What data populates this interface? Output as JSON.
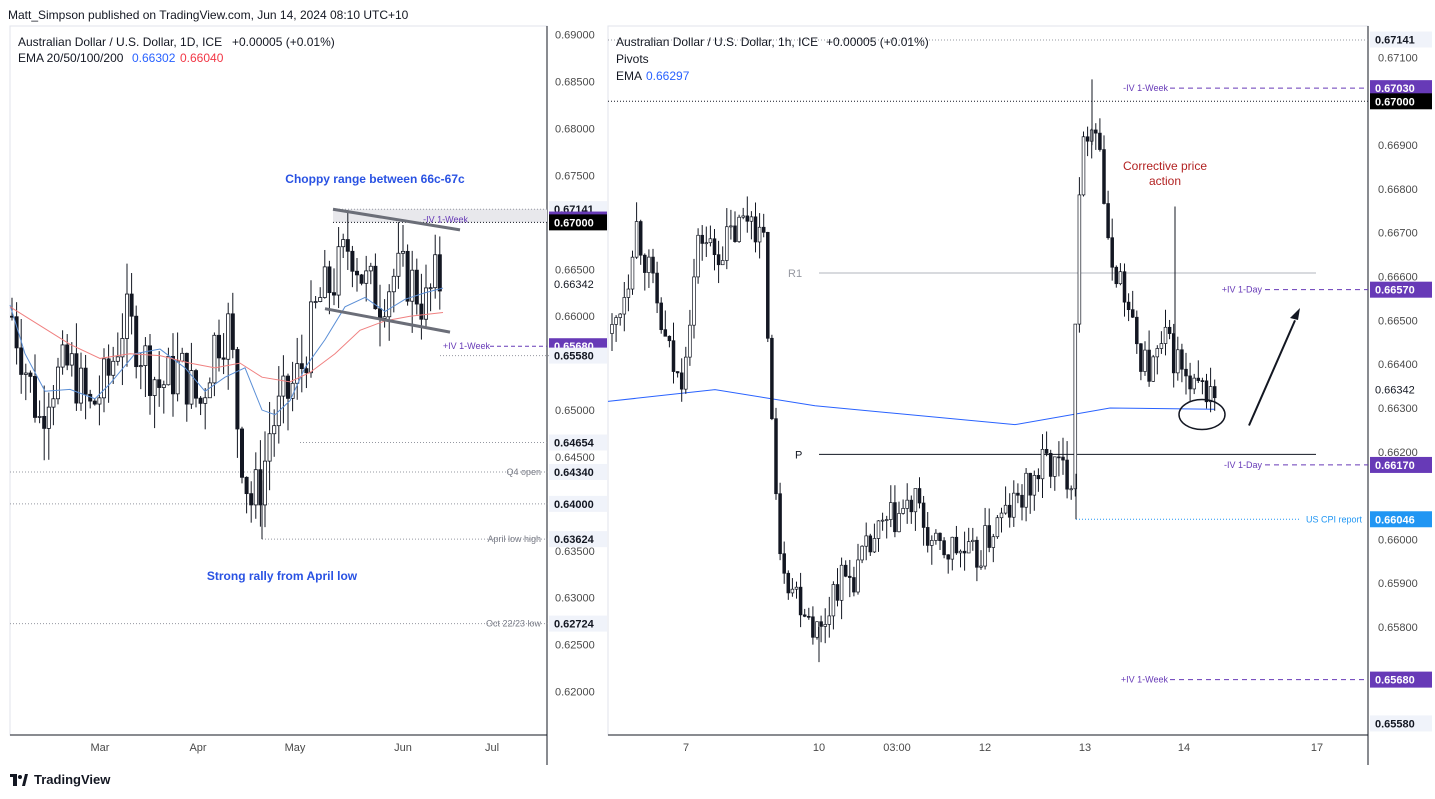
{
  "header": {
    "publisher": "Matt_Simpson published on TradingView.com, Jun 14, 2024 08:10 UTC+10"
  },
  "footer": {
    "brand": "TradingView"
  },
  "colors": {
    "ema_fast": "#2962ff",
    "ema_slow": "#f23645",
    "label_purple": "#673ab7",
    "label_black": "#000000",
    "label_grey": "#787b86",
    "label_blue": "#2196f3",
    "up": "#ffffff",
    "down": "#131722"
  },
  "chart_data": [
    {
      "type": "candlestick",
      "timeframe": "1D",
      "title": "Australian Dollar / U.S. Dollar, 1D, ICE",
      "change": "+0.00005 (+0.01%)",
      "indicator_label": "EMA 20/50/100/200",
      "ema_values": [
        "0.66302",
        "0.66040"
      ],
      "x_tick_labels": [
        "Mar",
        "Apr",
        "May",
        "Jun",
        "Jul"
      ],
      "y_tick_labels": [
        "0.69000",
        "0.68500",
        "0.68000",
        "0.67500",
        "0.66500",
        "0.66000",
        "0.65000",
        "0.64500",
        "0.63500",
        "0.63000",
        "0.62500",
        "0.62000"
      ],
      "ylim": [
        0.6175,
        0.6905
      ],
      "price_badges": [
        {
          "text": "0.67141",
          "value": 0.67141,
          "style": "grey"
        },
        {
          "text": "0.67030",
          "value": 0.6703,
          "style": "purple"
        },
        {
          "text": "0.67000",
          "value": 0.67,
          "style": "black"
        },
        {
          "text": "0.66342",
          "value": 0.66342,
          "style": "plain"
        },
        {
          "text": "0.65680",
          "value": 0.6568,
          "style": "purple"
        },
        {
          "text": "0.65580",
          "value": 0.6558,
          "style": "grey"
        },
        {
          "text": "0.64654",
          "value": 0.64654,
          "style": "grey"
        },
        {
          "text": "0.64340",
          "value": 0.6434,
          "style": "grey"
        },
        {
          "text": "0.64000",
          "value": 0.64,
          "style": "grey"
        },
        {
          "text": "0.63624",
          "value": 0.63624,
          "style": "grey"
        },
        {
          "text": "0.62724",
          "value": 0.62724,
          "style": "grey"
        }
      ],
      "level_labels": [
        {
          "text": "-IV 1-Week",
          "value": 0.6703
        },
        {
          "text": "+IV 1-Week",
          "value": 0.6568
        },
        {
          "text": "Q4 open",
          "value": 0.6434
        },
        {
          "text": "April low high",
          "value": 0.63624
        },
        {
          "text": "Oct 22/23 low",
          "value": 0.62724
        }
      ],
      "annotations": [
        "Choppy range between 66c-67c",
        "Strong rally from April low"
      ]
    },
    {
      "type": "candlestick",
      "timeframe": "1h",
      "title": "Australian Dollar / U.S. Dollar, 1h, ICE",
      "change": "+0.00005 (+0.01%)",
      "indicator_label": "Pivots",
      "ema_label": "EMA",
      "ema_value": "0.66297",
      "x_tick_labels": [
        "7",
        "10",
        "03:00",
        "12",
        "13",
        "14",
        "17"
      ],
      "y_tick_labels": [
        "0.67100",
        "0.66900",
        "0.66800",
        "0.66700",
        "0.66600",
        "0.66500",
        "0.66400",
        "0.66300",
        "0.66200",
        "0.66000",
        "0.65900",
        "0.65800"
      ],
      "ylim": [
        0.65565,
        0.67165
      ],
      "pivots": [
        {
          "text": "R1",
          "value": 0.66608
        },
        {
          "text": "P",
          "value": 0.66194
        }
      ],
      "price_badges": [
        {
          "text": "0.67141",
          "value": 0.67141,
          "style": "grey"
        },
        {
          "text": "0.67030",
          "value": 0.6703,
          "style": "purple"
        },
        {
          "text": "0.67000",
          "value": 0.67,
          "style": "black"
        },
        {
          "text": "0.66570",
          "value": 0.6657,
          "style": "purple"
        },
        {
          "text": "0.66342",
          "value": 0.66342,
          "style": "plain"
        },
        {
          "text": "0.66170",
          "value": 0.6617,
          "style": "purple"
        },
        {
          "text": "0.66046",
          "value": 0.66046,
          "style": "blue"
        },
        {
          "text": "0.65680",
          "value": 0.6568,
          "style": "purple"
        },
        {
          "text": "0.65580",
          "value": 0.6558,
          "style": "grey"
        }
      ],
      "level_labels": [
        {
          "text": "-IV 1-Week",
          "value": 0.6703
        },
        {
          "text": "+IV 1-Day",
          "value": 0.6657
        },
        {
          "text": "-IV 1-Day",
          "value": 0.6617
        },
        {
          "text": "US CPI report",
          "value": 0.66046
        },
        {
          "text": "+IV 1-Week",
          "value": 0.6568
        }
      ],
      "annotations": [
        "Corrective price action"
      ]
    }
  ]
}
